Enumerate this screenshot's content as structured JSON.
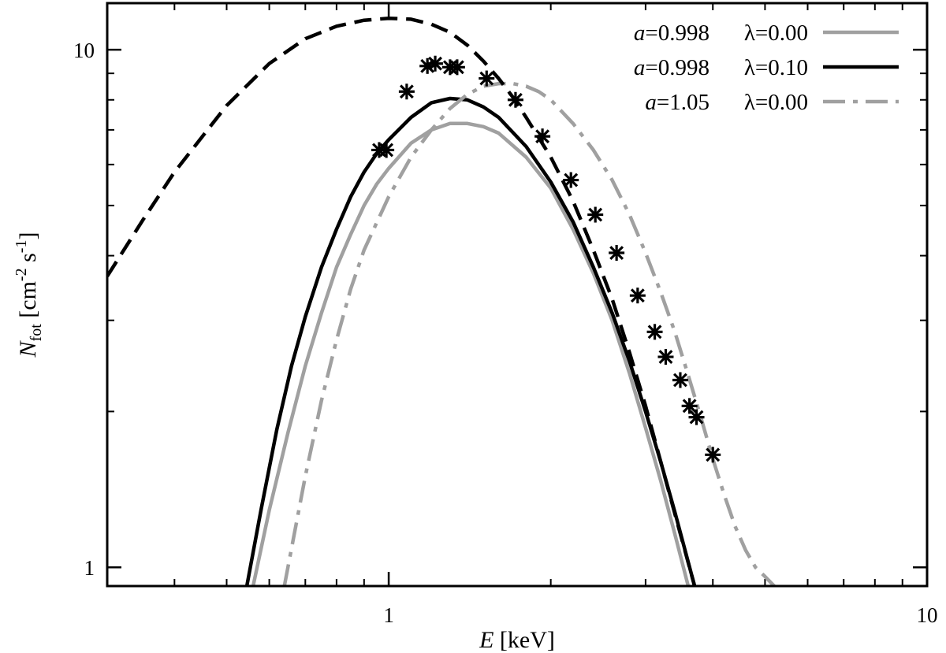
{
  "chart_data": {
    "type": "line",
    "xscale": "log",
    "yscale": "log",
    "xlim": [
      0.3,
      10
    ],
    "ylim": [
      0.92,
      12.3
    ],
    "grid": false,
    "legend_position": "top-right",
    "xlabel": {
      "var": "E",
      "unit": " [keV]"
    },
    "ylabel": {
      "var": "N",
      "sub": "fot",
      "unit": " [cm",
      "exp1": "-2",
      "mid": " s",
      "exp2": "-1",
      "end": "]"
    },
    "x_ticks": [
      {
        "value": 1,
        "label": "1"
      },
      {
        "value": 10,
        "label": "10"
      }
    ],
    "y_ticks": [
      {
        "value": 1,
        "label": "1"
      },
      {
        "value": 10,
        "label": "10"
      }
    ],
    "series": [
      {
        "legend": {
          "a": "a",
          "a_value": "=0.998",
          "lambda": "λ=0.00"
        },
        "color": "#a0a0a0",
        "style": "solid",
        "x": [
          0.56,
          0.6,
          0.65,
          0.7,
          0.75,
          0.8,
          0.85,
          0.9,
          0.95,
          1.0,
          1.1,
          1.2,
          1.3,
          1.4,
          1.5,
          1.6,
          1.8,
          2.0,
          2.2,
          2.4,
          2.6,
          2.8,
          3.0,
          3.2,
          3.4,
          3.6
        ],
        "y": [
          0.92,
          1.29,
          1.82,
          2.45,
          3.1,
          3.8,
          4.4,
          5.0,
          5.5,
          5.9,
          6.6,
          7.0,
          7.2,
          7.2,
          7.1,
          6.9,
          6.2,
          5.4,
          4.5,
          3.7,
          3.0,
          2.37,
          1.86,
          1.47,
          1.16,
          0.92
        ]
      },
      {
        "legend": {
          "a": "a",
          "a_value": "=0.998",
          "lambda": "λ=0.10"
        },
        "color": "#000000",
        "style": "solid",
        "x": [
          0.545,
          0.58,
          0.62,
          0.66,
          0.7,
          0.75,
          0.8,
          0.85,
          0.9,
          0.95,
          1.0,
          1.1,
          1.2,
          1.3,
          1.4,
          1.5,
          1.6,
          1.8,
          2.0,
          2.2,
          2.4,
          2.6,
          2.8,
          3.0,
          3.2,
          3.4,
          3.7
        ],
        "y": [
          0.92,
          1.3,
          1.85,
          2.45,
          3.05,
          3.8,
          4.5,
          5.2,
          5.8,
          6.3,
          6.7,
          7.4,
          7.9,
          8.05,
          8.0,
          7.75,
          7.4,
          6.5,
          5.55,
          4.65,
          3.8,
          3.1,
          2.5,
          2.0,
          1.6,
          1.28,
          0.92
        ]
      },
      {
        "legend": {
          "a": "a",
          "a_value": "=1.05",
          "lambda": "λ=0.00"
        },
        "color": "#a0a0a0",
        "style": "dashdot",
        "x": [
          0.64,
          0.7,
          0.75,
          0.8,
          0.85,
          0.9,
          1.0,
          1.1,
          1.2,
          1.3,
          1.4,
          1.5,
          1.6,
          1.7,
          1.8,
          1.9,
          2.0,
          2.2,
          2.4,
          2.6,
          2.8,
          3.0,
          3.2,
          3.4,
          3.6,
          3.8,
          4.0,
          4.2,
          4.4,
          4.6,
          4.8,
          5.0,
          5.2
        ],
        "y": [
          0.92,
          1.5,
          2.1,
          2.75,
          3.45,
          4.1,
          5.2,
          6.2,
          7.0,
          7.7,
          8.2,
          8.5,
          8.6,
          8.6,
          8.5,
          8.3,
          8.0,
          7.2,
          6.4,
          5.6,
          4.8,
          4.05,
          3.4,
          2.85,
          2.35,
          1.95,
          1.62,
          1.38,
          1.2,
          1.08,
          1.0,
          0.96,
          0.92
        ]
      },
      {
        "color": "#000000",
        "style": "dashed",
        "x": [
          0.3,
          0.35,
          0.4,
          0.5,
          0.6,
          0.7,
          0.8,
          0.9,
          1.0,
          1.1,
          1.2,
          1.3,
          1.4,
          1.5,
          1.6,
          1.7,
          1.8,
          2.0,
          2.2,
          2.4,
          2.6,
          2.8,
          3.0,
          3.2,
          3.4,
          3.7
        ],
        "y": [
          3.65,
          4.7,
          5.8,
          7.8,
          9.4,
          10.5,
          11.1,
          11.4,
          11.5,
          11.45,
          11.2,
          10.8,
          10.2,
          9.5,
          8.8,
          8.1,
          7.4,
          6.2,
          5.1,
          4.1,
          3.3,
          2.6,
          2.05,
          1.6,
          1.27,
          0.92
        ]
      }
    ],
    "data_points": {
      "marker": "asterisk",
      "color": "#000000",
      "x": [
        0.96,
        0.99,
        1.08,
        1.18,
        1.22,
        1.3,
        1.34,
        1.52,
        1.72,
        1.93,
        2.18,
        2.42,
        2.65,
        2.9,
        3.12,
        3.27,
        3.48,
        3.62,
        3.73,
        4.0
      ],
      "y": [
        6.4,
        6.4,
        8.3,
        9.3,
        9.4,
        9.25,
        9.25,
        8.8,
        8.0,
        6.8,
        5.6,
        4.8,
        4.05,
        3.35,
        2.85,
        2.55,
        2.3,
        2.05,
        1.95,
        1.65
      ]
    }
  }
}
